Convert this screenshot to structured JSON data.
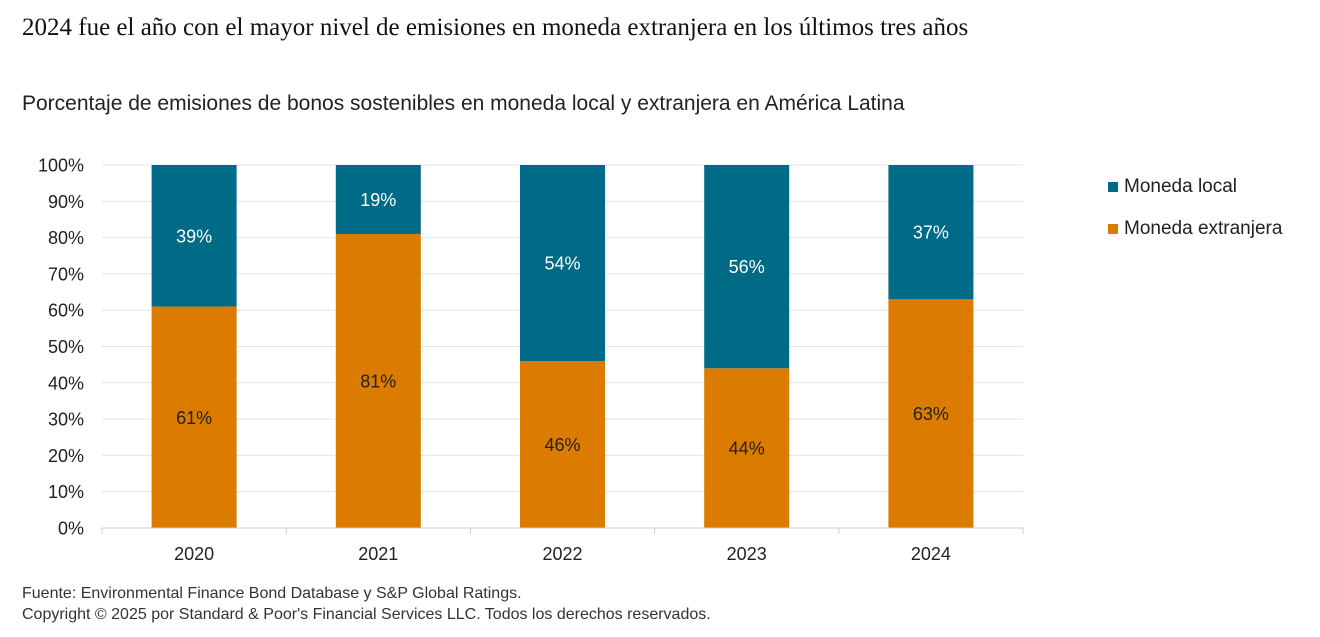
{
  "header": {
    "title": "2024 fue el año con el mayor nivel de emisiones en moneda extranjera en los últimos tres años",
    "subtitle": "Porcentaje de emisiones de bonos sostenibles en moneda local y extranjera en América Latina"
  },
  "footer": {
    "source": "Fuente: Environmental Finance Bond Database y S&P Global Ratings.",
    "copyright": "Copyright © 2025 por Standard & Poor's Financial Services LLC. Todos los derechos reservados."
  },
  "colors": {
    "local": "#006b87",
    "extranjera": "#db7b00",
    "grid": "#e4e4e4",
    "axis": "#cccccc",
    "label_on_local": "#ffffff",
    "label_on_extranjera": "#222222"
  },
  "chart_data": {
    "type": "bar",
    "stacked": true,
    "categories": [
      "2020",
      "2021",
      "2022",
      "2023",
      "2024"
    ],
    "series": [
      {
        "name": "Moneda extranjera",
        "values": [
          61,
          81,
          46,
          44,
          63
        ],
        "labels": [
          "61%",
          "81%",
          "46%",
          "44%",
          "63%"
        ]
      },
      {
        "name": "Moneda local",
        "values": [
          39,
          19,
          54,
          56,
          37
        ],
        "labels": [
          "39%",
          "19%",
          "54%",
          "56%",
          "37%"
        ]
      }
    ],
    "yticks": [
      "0%",
      "10%",
      "20%",
      "30%",
      "40%",
      "50%",
      "60%",
      "70%",
      "80%",
      "90%",
      "100%"
    ],
    "ylim": [
      0,
      100
    ],
    "grid": true,
    "legend_placement": "right",
    "legend": [
      "Moneda local",
      "Moneda extranjera"
    ]
  }
}
